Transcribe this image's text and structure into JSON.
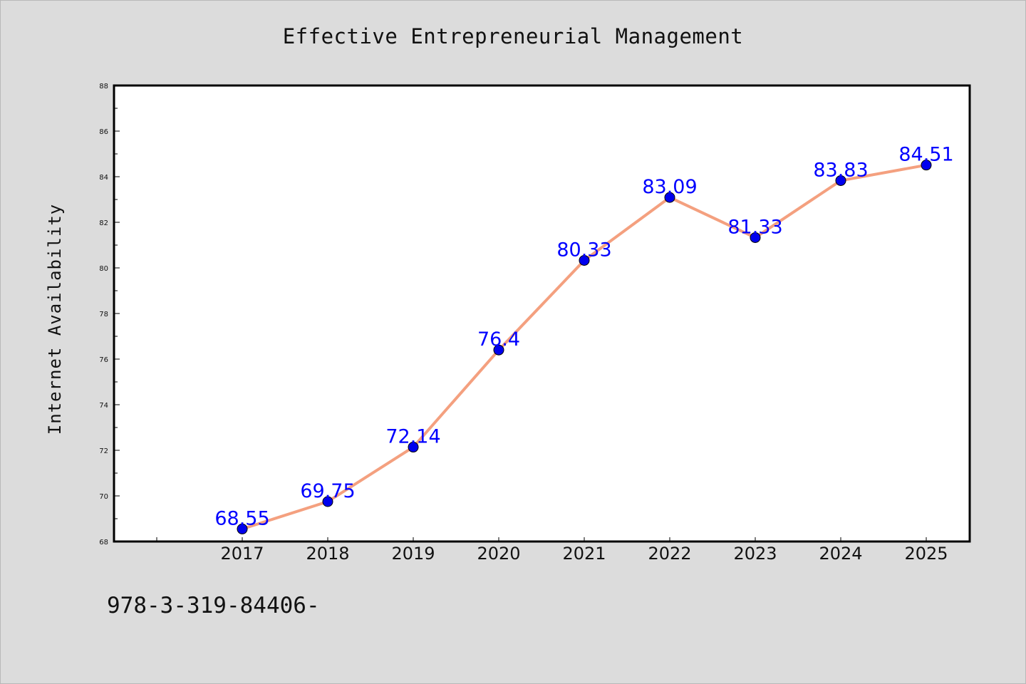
{
  "chart_data": {
    "type": "line",
    "title": "Effective Entrepreneurial Management",
    "xlabel": "",
    "ylabel": "Internet Availability",
    "categories": [
      "2017",
      "2018",
      "2019",
      "2020",
      "2021",
      "2022",
      "2023",
      "2024",
      "2025"
    ],
    "series": [
      {
        "values": [
          68.55,
          69.75,
          72.14,
          76.4,
          80.33,
          83.09,
          81.33,
          83.83,
          84.51
        ],
        "labels": [
          "68.55",
          "69.75",
          "72.14",
          "76.4",
          "80.33",
          "83.09",
          "81.33",
          "83.83",
          "84.51"
        ],
        "line_color": "#f4a07f",
        "marker_color": "#0000ee"
      }
    ],
    "ylim": [
      68,
      88
    ],
    "yticks": [
      "68",
      "70",
      "72",
      "74",
      "76",
      "78",
      "80",
      "82",
      "84",
      "86",
      "88"
    ],
    "grid": false,
    "label_color": "#0000ff",
    "background": "#dcdcdc",
    "plot_background": "#ffffff"
  },
  "footer": {
    "text": "978-3-319-84406-"
  }
}
